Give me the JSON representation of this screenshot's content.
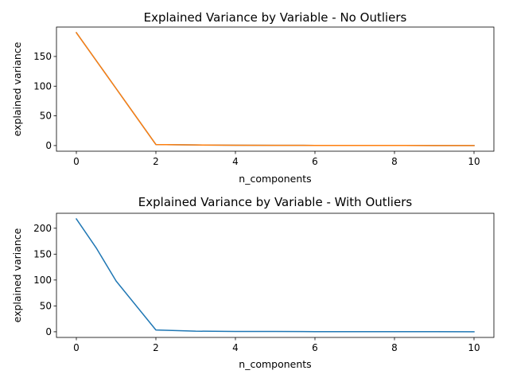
{
  "chart_data": [
    {
      "type": "line",
      "title": "Explained Variance by Variable - No Outliers",
      "xlabel": "n_components",
      "ylabel": "explained variance",
      "xlim": [
        -0.5,
        10.5
      ],
      "ylim": [
        -9.5,
        199.5
      ],
      "xticks": [
        0,
        2,
        4,
        6,
        8,
        10
      ],
      "yticks": [
        0,
        50,
        100,
        150
      ],
      "grid": false,
      "series": [
        {
          "color": "#1f77b4",
          "x": [
            0,
            1,
            2,
            3,
            4,
            5,
            6,
            7,
            8,
            9,
            10
          ],
          "y": [
            190.0,
            96.0,
            1.8,
            1.0,
            0.6,
            0.4,
            0.3,
            0.2,
            0.15,
            0.1,
            0.05
          ]
        },
        {
          "color": "#ff7f0e",
          "x": [
            0,
            1,
            2,
            3,
            4,
            5,
            6,
            7,
            8,
            9,
            10
          ],
          "y": [
            190.0,
            96.0,
            1.8,
            1.0,
            0.6,
            0.4,
            0.3,
            0.2,
            0.15,
            0.1,
            0.05
          ]
        }
      ]
    },
    {
      "type": "line",
      "title": "Explained Variance by Variable - With Outliers",
      "xlabel": "n_components",
      "ylabel": "explained variance",
      "xlim": [
        -0.5,
        10.5
      ],
      "ylim": [
        -10.9,
        228.9
      ],
      "xticks": [
        0,
        2,
        4,
        6,
        8,
        10
      ],
      "yticks": [
        0,
        50,
        100,
        150,
        200
      ],
      "grid": false,
      "series": [
        {
          "color": "#1f77b4",
          "x": [
            0,
            0.5,
            1,
            2,
            3,
            4,
            5,
            6,
            7,
            8,
            9,
            10
          ],
          "y": [
            218.0,
            162.0,
            98.0,
            3.5,
            1.2,
            0.7,
            0.6,
            0.3,
            0.25,
            0.2,
            0.15,
            0.1
          ]
        }
      ]
    }
  ]
}
